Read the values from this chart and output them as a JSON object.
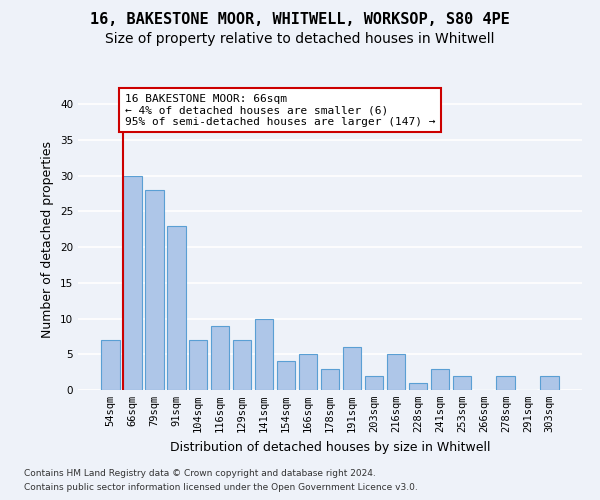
{
  "title1": "16, BAKESTONE MOOR, WHITWELL, WORKSOP, S80 4PE",
  "title2": "Size of property relative to detached houses in Whitwell",
  "xlabel": "Distribution of detached houses by size in Whitwell",
  "ylabel": "Number of detached properties",
  "categories": [
    "54sqm",
    "66sqm",
    "79sqm",
    "91sqm",
    "104sqm",
    "116sqm",
    "129sqm",
    "141sqm",
    "154sqm",
    "166sqm",
    "178sqm",
    "191sqm",
    "203sqm",
    "216sqm",
    "228sqm",
    "241sqm",
    "253sqm",
    "266sqm",
    "278sqm",
    "291sqm",
    "303sqm"
  ],
  "values": [
    7,
    30,
    28,
    23,
    7,
    9,
    7,
    10,
    4,
    5,
    3,
    6,
    2,
    5,
    1,
    3,
    2,
    0,
    2,
    0,
    2
  ],
  "bar_color": "#aec6e8",
  "bar_edge_color": "#5a9fd4",
  "annotation_text_line1": "16 BAKESTONE MOOR: 66sqm",
  "annotation_text_line2": "← 4% of detached houses are smaller (6)",
  "annotation_text_line3": "95% of semi-detached houses are larger (147) →",
  "annotation_box_color": "#ffffff",
  "annotation_box_edge_color": "#cc0000",
  "vline_color": "#cc0000",
  "vline_x_index": 1,
  "ylim": [
    0,
    42
  ],
  "yticks": [
    0,
    5,
    10,
    15,
    20,
    25,
    30,
    35,
    40
  ],
  "background_color": "#eef2f9",
  "grid_color": "#ffffff",
  "footnote1": "Contains HM Land Registry data © Crown copyright and database right 2024.",
  "footnote2": "Contains public sector information licensed under the Open Government Licence v3.0.",
  "title1_fontsize": 11,
  "title2_fontsize": 10,
  "tick_fontsize": 7.5,
  "label_fontsize": 9,
  "annot_fontsize": 8
}
